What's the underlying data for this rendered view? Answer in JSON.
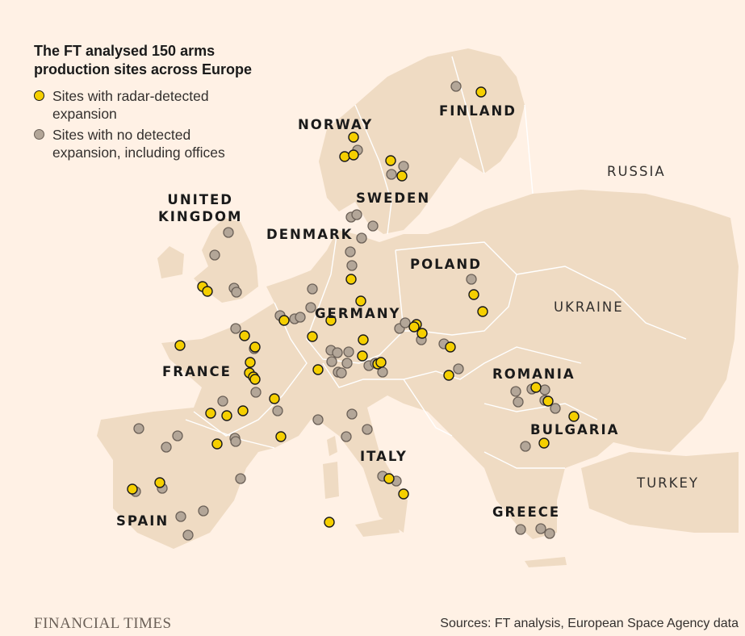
{
  "title": "The FT analysed 150 arms production sites across Europe",
  "legend": {
    "expansion_label": "Sites with radar-detected expansion",
    "no_expansion_label": "Sites with no detected expansion, including offices"
  },
  "colors": {
    "background": "#fff1e5",
    "land": "#efdbc3",
    "border": "#ffffff",
    "expansion_marker": "#f5cf00",
    "no_expansion_marker": "#b3a698"
  },
  "countries": {
    "norway": "NORWAY",
    "finland": "FINLAND",
    "russia": "RUSSIA",
    "sweden": "SWEDEN",
    "united_kingdom": "UNITED\nKINGDOM",
    "denmark": "DENMARK",
    "poland": "POLAND",
    "germany": "GERMANY",
    "ukraine": "UKRAINE",
    "france": "FRANCE",
    "romania": "ROMANIA",
    "bulgaria": "BULGARIA",
    "italy": "ITALY",
    "turkey": "TURKEY",
    "spain": "SPAIN",
    "greece": "GREECE"
  },
  "footer": {
    "brand": "FINANCIAL TIMES",
    "sources": "Sources: FT analysis, European Space Agency data"
  }
}
